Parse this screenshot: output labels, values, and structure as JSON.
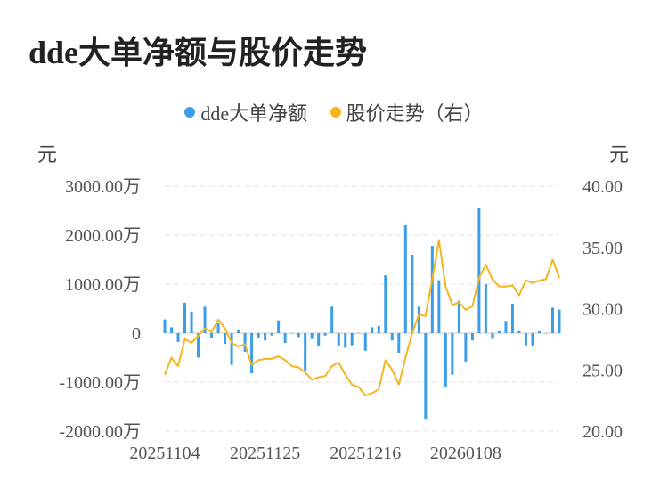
{
  "title": "dde大单净额与股价走势",
  "colors": {
    "bar": "#3a9ee8",
    "line": "#f4b51d",
    "grid": "#e6e6e6"
  },
  "chart_data": {
    "type": "bar+line",
    "title": "dde大单净额与股价走势",
    "legend": [
      {
        "name": "dde大单净额",
        "color": "#3a9ee8"
      },
      {
        "name": "股价走势（右）",
        "color": "#f4b51d"
      }
    ],
    "left_unit": "元",
    "right_unit": "元",
    "left_axis": {
      "ticks": [
        3000,
        2000,
        1000,
        0,
        -1000,
        -2000
      ],
      "tick_labels": [
        "3000.00万",
        "2000.00万",
        "1000.00万",
        "0",
        "-1000.00万",
        "-2000.00万"
      ],
      "ylim": [
        -2000,
        3000
      ]
    },
    "right_axis": {
      "ticks": [
        40,
        35,
        30,
        25,
        20
      ],
      "tick_labels": [
        "40.00",
        "35.00",
        "30.00",
        "25.00",
        "20.00"
      ],
      "ylim": [
        20,
        40
      ]
    },
    "x_tick_labels": [
      "20251104",
      "20251125",
      "20251216",
      "20260108"
    ],
    "x_tick_indices": [
      0,
      15,
      30,
      45
    ],
    "legend_position": "top-center",
    "grid": true,
    "series": [
      {
        "name": "dde大单净额",
        "type": "bar",
        "values": [
          280,
          120,
          -180,
          620,
          440,
          -500,
          540,
          -100,
          200,
          -220,
          -650,
          60,
          -380,
          -820,
          -100,
          -150,
          -50,
          260,
          -200,
          0,
          -80,
          -760,
          -120,
          -260,
          -50,
          540,
          -260,
          -300,
          -250,
          0,
          -360,
          120,
          150,
          1180,
          -150,
          -400,
          2200,
          1600,
          540,
          -1750,
          1780,
          1080,
          -1110,
          -850,
          660,
          -580,
          -150,
          2560,
          1000,
          -120,
          40,
          250,
          600,
          40,
          -250,
          -250,
          40,
          0,
          520,
          480
        ]
      },
      {
        "name": "股价走势（右）",
        "type": "line",
        "axis": "right",
        "values": [
          24.6,
          26.0,
          25.3,
          27.5,
          27.2,
          27.8,
          28.4,
          28.1,
          29.1,
          28.4,
          27.2,
          26.9,
          27.1,
          25.4,
          25.8,
          25.9,
          25.9,
          26.1,
          25.8,
          25.3,
          25.2,
          24.8,
          24.2,
          24.4,
          24.5,
          25.3,
          25.6,
          24.6,
          23.8,
          23.6,
          22.9,
          23.1,
          23.4,
          25.8,
          25.0,
          23.8,
          26.0,
          28.0,
          29.5,
          29.4,
          32.4,
          35.6,
          31.8,
          30.3,
          30.5,
          29.9,
          30.2,
          32.5,
          33.6,
          32.4,
          31.8,
          31.8,
          31.9,
          31.1,
          32.3,
          32.1,
          32.3,
          32.4,
          34.0,
          32.5
        ]
      }
    ]
  }
}
